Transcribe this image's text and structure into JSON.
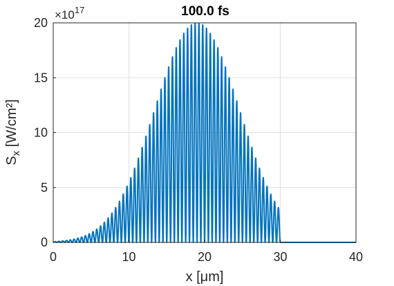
{
  "chart_data": {
    "type": "line",
    "title": "100.0 fs",
    "xlabel": "x [μm]",
    "ylabel_main": "S",
    "ylabel_sub": "x",
    "ylabel_unit": " [W/cm²]",
    "y_multiplier": "×10",
    "y_multiplier_exp": "17",
    "xlim": [
      0,
      40
    ],
    "ylim": [
      0,
      20
    ],
    "x_ticks": [
      0,
      10,
      20,
      30,
      40
    ],
    "x_tick_labels": [
      "0",
      "10",
      "20",
      "30",
      "40"
    ],
    "y_ticks": [
      0,
      5,
      10,
      15,
      20
    ],
    "y_tick_labels": [
      "0",
      "5",
      "10",
      "15",
      "20"
    ],
    "grid": true,
    "series": [
      {
        "color": "#0072bd",
        "description": "oscillating intensity, Gaussian envelope peaking at x≈19 μm (~20×10^17 W/cm²), cut off at x≈30 μm, zero afterwards",
        "envelope_peak_x": 19,
        "envelope_peak_y": 20,
        "envelope_sigma": 5.6,
        "oscillation_period": 0.5,
        "cutoff_x": 30
      }
    ]
  }
}
